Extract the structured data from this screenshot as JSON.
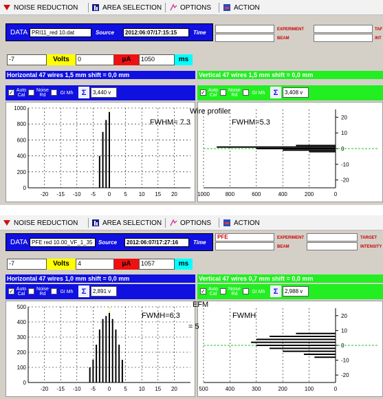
{
  "colors": {
    "blue": "#1010e0",
    "green": "#22ee22",
    "yellow": "#ffff00",
    "red": "#ee1111",
    "cyan": "#00ffff"
  },
  "menu": {
    "noise": "NOISE REDUCTION",
    "area": "AREA SELECTION",
    "options": "OPTIONS",
    "action": "ACTION"
  },
  "data_label": "DATA",
  "source_label": "Source",
  "time_label": "Time",
  "experiment_label": "EXPERIMENT",
  "beam_label": "BEAM",
  "target_label": "TARGET",
  "intensity_label": "INTENSITY",
  "volts_label": "Volts",
  "ua_label": "µA",
  "ms_label": "ms",
  "auto_cal": "Auto Cal",
  "noise_rd": "Noise Rd",
  "gi_mh": "GI Mh",
  "panel1": {
    "file": "PRI11_red 10.dat",
    "source": "2012:06:07/17:15:15",
    "experiment": "",
    "target_short": "TAF",
    "intensity_short": "INT",
    "v1": "-7",
    "v2": "0",
    "v3": "1050",
    "h_title": "Horizontal 47 wires 1,5 mm shift = 0,0 mm",
    "v_title": "Vertical 47 wires 1,5 mm shift = 0,0 mm",
    "h_sum": "3,440 v",
    "v_sum": "3,408 v",
    "ann_profiler": "Wire profiler",
    "ann_fwhm_h": "FWHM= 7.3",
    "ann_fwhm_v": "FWHM=5.3",
    "h_yticks": [
      "1000",
      "800",
      "600",
      "400",
      "200",
      "0"
    ],
    "h_xticks": [
      "-20",
      "-15",
      "-10",
      "-5",
      "0",
      "5",
      "10",
      "15",
      "20"
    ],
    "v_yticks": [
      "20",
      "10",
      "0",
      "-10",
      "-20"
    ],
    "v_xticks": [
      "1000",
      "800",
      "600",
      "400",
      "200",
      "0"
    ]
  },
  "panel2": {
    "file": "PFE red 10.00_VF_1_35",
    "source": "2012:06:07/17:27:16",
    "experiment": "PFE",
    "v1": "-7",
    "v2": "4",
    "v3": "1057",
    "h_title": "Horizontal 47 wires 1,0 mm shift = 0,0 mm",
    "v_title": "Vertical 47 wires 0,7 mm shift = 0,0 mm",
    "h_sum": "2,891 v",
    "v_sum": "2,988 v",
    "ann_efm": "EFM",
    "ann_fwhm_h": "FWMH=6.3",
    "ann_eq5": "= 5",
    "ann_fwmh_v": "FWMH",
    "h_yticks": [
      "500",
      "400",
      "300",
      "200",
      "100",
      "0"
    ],
    "h_xticks": [
      "-20",
      "-15",
      "-10",
      "-5",
      "0",
      "5",
      "10",
      "15",
      "20"
    ],
    "v_yticks": [
      "20",
      "10",
      "0",
      "-10",
      "-20"
    ],
    "v_xticks": [
      "500",
      "400",
      "300",
      "200",
      "100",
      "0"
    ]
  },
  "chart_data": [
    {
      "type": "bar",
      "panel": "1-horizontal",
      "x": [
        -3,
        -2,
        -1,
        0
      ],
      "values": [
        400,
        700,
        850,
        950
      ],
      "ylim": [
        0,
        1000
      ],
      "xlim": [
        -25,
        25
      ]
    },
    {
      "type": "bar",
      "panel": "1-vertical",
      "y": [
        1,
        0,
        -1,
        2,
        -2
      ],
      "values": [
        900,
        600,
        400,
        300,
        200
      ],
      "ylim": [
        -25,
        25
      ]
    },
    {
      "type": "bar",
      "panel": "2-horizontal",
      "x": [
        -6,
        -5,
        -4,
        -3,
        -2,
        -1,
        0,
        1,
        2,
        3,
        4
      ],
      "values": [
        100,
        150,
        250,
        350,
        420,
        440,
        460,
        420,
        350,
        250,
        150
      ],
      "ylim": [
        0,
        500
      ],
      "xlim": [
        -25,
        25
      ]
    },
    {
      "type": "bar",
      "panel": "2-vertical",
      "y": [
        8,
        6,
        4,
        2,
        0,
        -2,
        -4,
        -6,
        -8
      ],
      "values": [
        150,
        250,
        300,
        320,
        300,
        250,
        200,
        120,
        80
      ],
      "ylim": [
        -25,
        25
      ]
    }
  ]
}
